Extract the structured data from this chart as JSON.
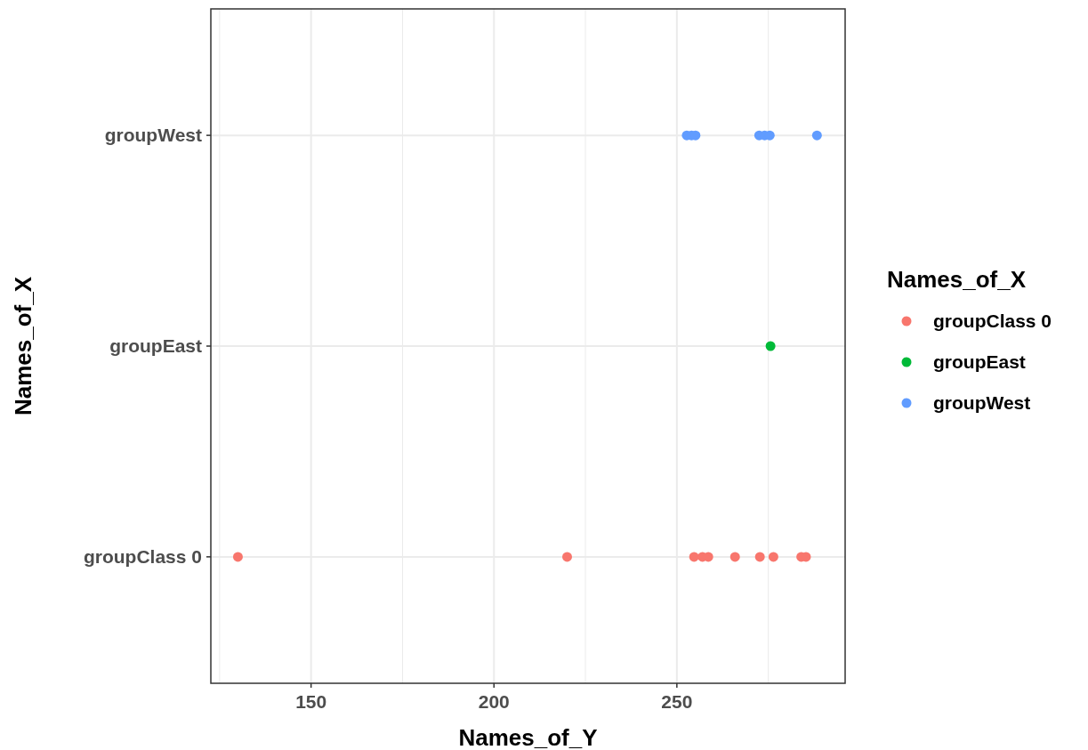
{
  "chart_data": {
    "type": "scatter",
    "orientation": "horizontal",
    "xlabel": "Names_of_Y",
    "ylabel": "Names_of_X",
    "legend_title": "Names_of_X",
    "legend": "right",
    "grid": true,
    "marker": "circle",
    "categories": [
      "groupWest",
      "groupEast",
      "groupClass 0"
    ],
    "xlim": [
      122.6,
      296
    ],
    "xticks": [
      {
        "value": 125,
        "label": null
      },
      150,
      {
        "value": 175,
        "label": null
      },
      200,
      {
        "value": 225,
        "label": null
      },
      250,
      {
        "value": 275,
        "label": null
      }
    ],
    "series": [
      {
        "name": "groupClass 0",
        "color": "#f8766d",
        "x": [
          "groupClass 0",
          "groupClass 0",
          "groupClass 0",
          "groupClass 0",
          "groupClass 0",
          "groupClass 0",
          "groupClass 0",
          "groupClass 0",
          "groupClass 0",
          "groupClass 0"
        ],
        "values": [
          130,
          220,
          254.7,
          257,
          258.6,
          265.9,
          272.7,
          276.4,
          284,
          285.3
        ]
      },
      {
        "name": "groupEast",
        "color": "#00ba38",
        "x": [
          "groupEast"
        ],
        "values": [
          275.6
        ]
      },
      {
        "name": "groupWest",
        "color": "#619cff",
        "x": [
          "groupWest",
          "groupWest",
          "groupWest",
          "groupWest",
          "groupWest",
          "groupWest",
          "groupWest"
        ],
        "values": [
          252.7,
          254,
          255.1,
          272.5,
          274,
          275.4,
          288.3
        ]
      }
    ]
  }
}
